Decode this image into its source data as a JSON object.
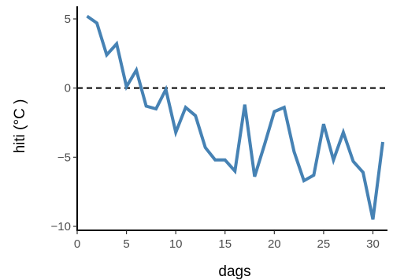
{
  "chart_data": {
    "type": "line",
    "xlabel": "dags",
    "ylabel": "hiti (°C )",
    "xlim": [
      0,
      31
    ],
    "ylim": [
      -10,
      5.5
    ],
    "x_ticks": [
      0,
      5,
      10,
      15,
      20,
      25,
      30
    ],
    "y_ticks": [
      5,
      0,
      -5,
      -10
    ],
    "x_tick_labels": [
      "0",
      "5",
      "10",
      "15",
      "20",
      "25",
      "30"
    ],
    "y_tick_labels": [
      "5",
      "0",
      "−5",
      "−10"
    ],
    "reference_line": {
      "y": 0,
      "style": "dashed",
      "color": "#000000"
    },
    "grid": false,
    "series": [
      {
        "color": "#4682b4",
        "x": [
          1,
          2,
          3,
          4,
          5,
          6,
          7,
          8,
          9,
          10,
          11,
          12,
          13,
          14,
          15,
          16,
          17,
          18,
          19,
          20,
          21,
          22,
          23,
          24,
          25,
          26,
          27,
          28,
          29,
          30,
          31
        ],
        "y": [
          5.2,
          4.7,
          2.4,
          3.2,
          0.1,
          1.3,
          -1.3,
          -1.5,
          -0.1,
          -3.2,
          -1.4,
          -2.0,
          -4.3,
          -5.2,
          -5.2,
          -6.0,
          -1.2,
          -6.4,
          -4.1,
          -1.7,
          -1.4,
          -4.6,
          -6.7,
          -6.3,
          -2.6,
          -5.2,
          -3.2,
          -5.3,
          -6.1,
          -9.5,
          -3.9
        ]
      }
    ]
  }
}
